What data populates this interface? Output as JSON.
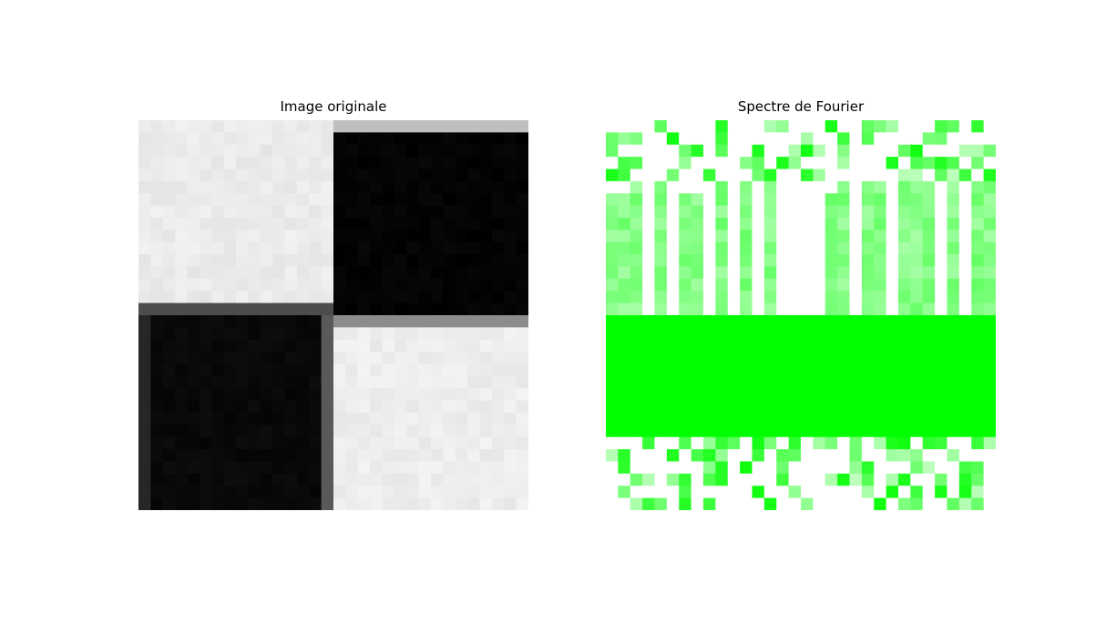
{
  "chart_data": [
    {
      "type": "heatmap",
      "title": "Image originale",
      "colormap": "gray",
      "grid": false,
      "axes_visible": false,
      "description_values": "4x4 checkerboard quadrants sampled on 32x32 grid",
      "rows": 32,
      "cols": 32,
      "quadrants": {
        "top_left": 0.92,
        "top_right": 0.0,
        "bottom_left": 0.02,
        "bottom_right": 0.93
      }
    },
    {
      "type": "heatmap",
      "title": "Spectre de Fourier",
      "colormap": "white-to-green",
      "accent_color": "#00ff00",
      "grid": false,
      "axes_visible": false,
      "rows": 32,
      "cols": 32,
      "solid_band_rows": [
        16,
        26
      ]
    }
  ]
}
